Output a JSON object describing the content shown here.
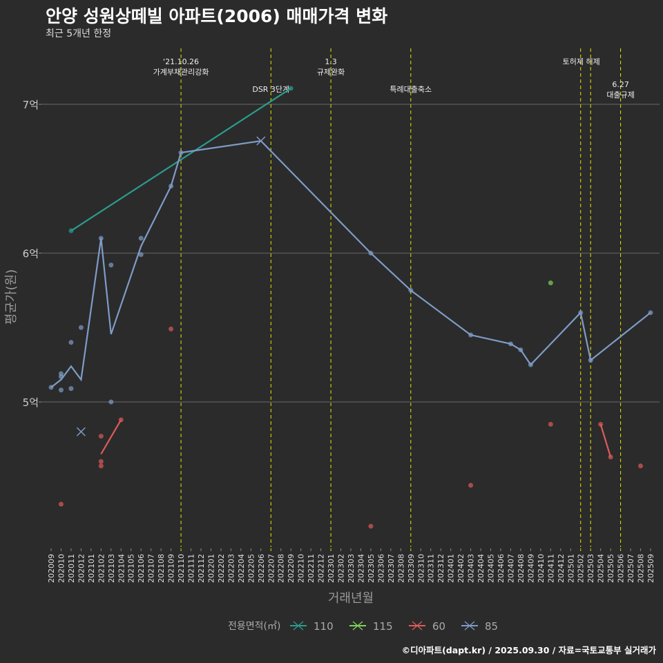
{
  "chart_data": {
    "type": "line",
    "title": "안양 성원상떼빌 아파트(2006) 매매가격 변화",
    "subtitle": "최근 5개년 한정",
    "xlabel": "거래년월",
    "ylabel": "평균가(원)",
    "y_unit": "억",
    "ylim": [
      4.0,
      7.35
    ],
    "yticks": [
      {
        "v": 5,
        "label": "5억"
      },
      {
        "v": 6,
        "label": "6억"
      },
      {
        "v": 7,
        "label": "7억"
      }
    ],
    "x_categories": [
      "202009",
      "202010",
      "202011",
      "202012",
      "202101",
      "202102",
      "202103",
      "202104",
      "202105",
      "202106",
      "202107",
      "202108",
      "202109",
      "202110",
      "202111",
      "202112",
      "202201",
      "202202",
      "202203",
      "202204",
      "202205",
      "202206",
      "202207",
      "202208",
      "202209",
      "202210",
      "202211",
      "202212",
      "202301",
      "202302",
      "202303",
      "202304",
      "202305",
      "202306",
      "202307",
      "202308",
      "202309",
      "202310",
      "202311",
      "202312",
      "202401",
      "202402",
      "202403",
      "202404",
      "202405",
      "202406",
      "202407",
      "202408",
      "202409",
      "202410",
      "202411",
      "202412",
      "202501",
      "202502",
      "202503",
      "202504",
      "202505",
      "202506",
      "202507",
      "202508",
      "202509"
    ],
    "legend": {
      "title": "전용면적(㎡)",
      "placement": "bottom"
    },
    "series": [
      {
        "name": "110",
        "color": "#2a9d8f",
        "line": [
          [
            "202011",
            6.15
          ],
          [
            "202209",
            7.107
          ]
        ],
        "points": [
          [
            "202011",
            6.15
          ],
          [
            "202209",
            7.107
          ]
        ]
      },
      {
        "name": "115",
        "color": "#7fd35b",
        "line": [],
        "points": [
          [
            "202411",
            5.8
          ]
        ]
      },
      {
        "name": "60",
        "color": "#e05a5a",
        "line": [
          [
            "202102",
            4.65
          ],
          [
            "202104",
            4.88
          ]
        ],
        "line2": [
          [
            "202504",
            4.85
          ],
          [
            "202505",
            4.63
          ]
        ],
        "points": [
          [
            "202010",
            4.313
          ],
          [
            "202102",
            4.77
          ],
          [
            "202102",
            4.6
          ],
          [
            "202102",
            4.57
          ],
          [
            "202104",
            4.88
          ],
          [
            "202109",
            5.49
          ],
          [
            "202305",
            4.165
          ],
          [
            "202403",
            4.44
          ],
          [
            "202411",
            4.85
          ],
          [
            "202504",
            4.85
          ],
          [
            "202505",
            4.63
          ],
          [
            "202508",
            4.57
          ]
        ]
      },
      {
        "name": "85",
        "color": "#7f9cc8",
        "line": [
          [
            "202009",
            5.098
          ],
          [
            "202010",
            5.15
          ],
          [
            "202011",
            5.24
          ],
          [
            "202012",
            5.15
          ],
          [
            "202102",
            6.1
          ],
          [
            "202103",
            5.455
          ],
          [
            "202106",
            6.046
          ],
          [
            "202109",
            6.45
          ],
          [
            "202110",
            6.675
          ],
          [
            "202206",
            6.754
          ],
          [
            "202305",
            6.0
          ],
          [
            "202309",
            5.75
          ],
          [
            "202403",
            5.45
          ],
          [
            "202407",
            5.39
          ],
          [
            "202408",
            5.35
          ],
          [
            "202409",
            5.25
          ],
          [
            "202502",
            5.6
          ],
          [
            "202503",
            5.28
          ],
          [
            "202509",
            5.6
          ]
        ],
        "points": [
          [
            "202009",
            5.098
          ],
          [
            "202010",
            5.19
          ],
          [
            "202010",
            5.17
          ],
          [
            "202010",
            5.08
          ],
          [
            "202011",
            5.4
          ],
          [
            "202011",
            5.09
          ],
          [
            "202012",
            5.5
          ],
          [
            "202102",
            6.1
          ],
          [
            "202103",
            5.92
          ],
          [
            "202103",
            5.0
          ],
          [
            "202106",
            6.1
          ],
          [
            "202106",
            5.99
          ],
          [
            "202109",
            6.45
          ],
          [
            "202110",
            6.675
          ],
          [
            "202305",
            6.0
          ],
          [
            "202309",
            5.75
          ],
          [
            "202403",
            5.45
          ],
          [
            "202407",
            5.39
          ],
          [
            "202408",
            5.35
          ],
          [
            "202409",
            5.25
          ],
          [
            "202502",
            5.6
          ],
          [
            "202503",
            5.28
          ],
          [
            "202509",
            5.6
          ]
        ],
        "cross": [
          [
            "202012",
            4.8
          ],
          [
            "202206",
            6.754
          ]
        ]
      }
    ],
    "events": [
      {
        "month": "202110",
        "lines": [
          "'21.10.26",
          "가계부채관리강화"
        ],
        "row": 0
      },
      {
        "month": "202207",
        "lines": [
          "DSR 3단계"
        ],
        "row": 2
      },
      {
        "month": "202301",
        "lines": [
          "1.3",
          "규제완화"
        ],
        "row": 0
      },
      {
        "month": "202309",
        "lines": [
          "특례대출축소"
        ],
        "row": 2
      },
      {
        "month": "202502",
        "lines": [
          "토허제 해제"
        ],
        "row": 1,
        "shift": "right"
      },
      {
        "month": "202503",
        "lines": [],
        "row": 1
      },
      {
        "month": "202506",
        "lines": [
          "6.27",
          "대출규제"
        ],
        "row": 3
      }
    ]
  },
  "footer": "©디아파트(dapt.kr) / 2025.09.30 / 자료=국토교통부 실거래가"
}
